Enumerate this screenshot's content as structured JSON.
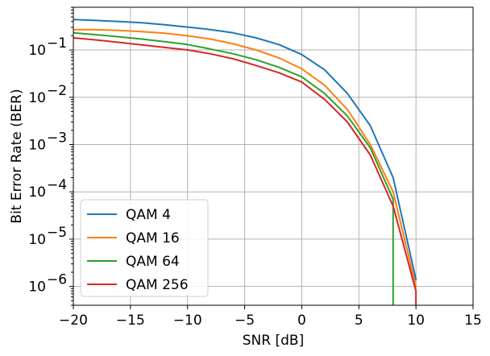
{
  "chart_data": {
    "type": "line",
    "xlabel": "SNR [dB]",
    "ylabel": "Bit Error Rate (BER)",
    "xlim": [
      -20,
      15
    ],
    "ylim": [
      4e-07,
      0.8
    ],
    "yscale": "log",
    "grid": true,
    "legend_loc": "lower-left",
    "x_ticks": [
      -20,
      -15,
      -10,
      -5,
      0,
      5,
      10,
      15
    ],
    "x_tick_labels": [
      "−20",
      "−15",
      "−10",
      "−5",
      "0",
      "5",
      "10",
      "15"
    ],
    "y_ticks": [
      1e-06,
      1e-05,
      0.0001,
      0.001,
      0.01,
      0.1
    ],
    "y_tick_labels": [
      "10",
      "10",
      "10",
      "10",
      "10",
      "10"
    ],
    "y_tick_exponents": [
      "−6",
      "−5",
      "−4",
      "−3",
      "−2",
      "−1"
    ],
    "series": [
      {
        "name": "QAM 4",
        "color": "#1f77b4",
        "x": [
          -20,
          -18,
          -16,
          -14,
          -12,
          -10,
          -8,
          -6,
          -4,
          -2,
          0,
          2,
          4,
          6,
          8,
          10
        ],
        "y": [
          0.44,
          0.42,
          0.4,
          0.375,
          0.34,
          0.305,
          0.27,
          0.23,
          0.18,
          0.13,
          0.08,
          0.038,
          0.012,
          0.0025,
          0.0002,
          1.4e-06
        ]
      },
      {
        "name": "QAM 16",
        "color": "#ff7f0e",
        "x": [
          -20,
          -18,
          -16,
          -14,
          -12,
          -10,
          -8,
          -6,
          -4,
          -2,
          0,
          2,
          4,
          6,
          8,
          10
        ],
        "y": [
          0.27,
          0.268,
          0.26,
          0.245,
          0.225,
          0.2,
          0.17,
          0.135,
          0.1,
          0.068,
          0.04,
          0.018,
          0.0055,
          0.001,
          0.0001,
          1e-06
        ]
      },
      {
        "name": "QAM 64",
        "color": "#2ca02c",
        "x": [
          -20,
          -18,
          -16,
          -14,
          -12,
          -10,
          -8,
          -6,
          -4,
          -2,
          0,
          2,
          4,
          6,
          8,
          8
        ],
        "y": [
          0.23,
          0.21,
          0.19,
          0.17,
          0.15,
          0.13,
          0.105,
          0.083,
          0.062,
          0.043,
          0.027,
          0.012,
          0.004,
          0.00085,
          7e-05,
          4e-07
        ]
      },
      {
        "name": "QAM 256",
        "color": "#d62728",
        "x": [
          -20,
          -18,
          -16,
          -14,
          -12,
          -10,
          -8,
          -6,
          -4,
          -2,
          0,
          2,
          4,
          6,
          8,
          10,
          10
        ],
        "y": [
          0.18,
          0.163,
          0.145,
          0.128,
          0.113,
          0.1,
          0.083,
          0.065,
          0.047,
          0.033,
          0.021,
          0.009,
          0.003,
          0.0006,
          5e-05,
          8e-07,
          4e-07
        ]
      }
    ]
  }
}
